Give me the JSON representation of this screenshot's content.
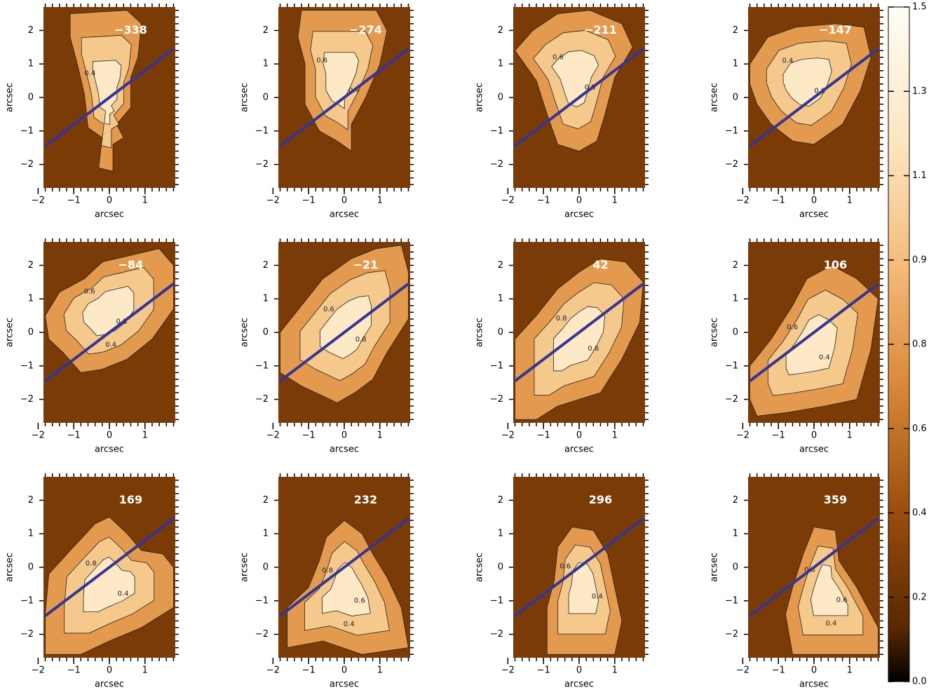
{
  "chart_data": [
    {
      "type": "image",
      "label": "-338",
      "xlabel": "arcsec",
      "ylabel": "arcsec",
      "xlim": [
        -1.85,
        1.85
      ],
      "ylim": [
        -2.7,
        2.7
      ],
      "xticks": [
        -2,
        -1,
        0,
        1
      ],
      "yticks": [
        -2,
        -1,
        0,
        1,
        2
      ],
      "contour_labels": [
        0.4
      ],
      "line": {
        "x": [
          -1.8,
          1.8
        ],
        "y": [
          -1.45,
          1.45
        ],
        "color": "#353594"
      }
    },
    {
      "type": "image",
      "label": "-274",
      "xlabel": "arcsec",
      "ylabel": "arcsec",
      "xlim": [
        -1.85,
        1.85
      ],
      "ylim": [
        -2.7,
        2.7
      ],
      "xticks": [
        -2,
        -1,
        0,
        1
      ],
      "yticks": [
        -2,
        -1,
        0,
        1,
        2
      ],
      "contour_labels": [
        0.6,
        0.4
      ],
      "line": {
        "x": [
          -1.8,
          1.8
        ],
        "y": [
          -1.45,
          1.45
        ],
        "color": "#353594"
      }
    },
    {
      "type": "image",
      "label": "-211",
      "xlabel": "arcsec",
      "ylabel": "arcsec",
      "xlim": [
        -1.85,
        1.85
      ],
      "ylim": [
        -2.7,
        2.7
      ],
      "xticks": [
        -2,
        -1,
        0,
        1
      ],
      "yticks": [
        -2,
        -1,
        0,
        1,
        2
      ],
      "contour_labels": [
        0.6,
        0.8
      ],
      "line": {
        "x": [
          -1.8,
          1.8
        ],
        "y": [
          -1.45,
          1.45
        ],
        "color": "#353594"
      }
    },
    {
      "type": "image",
      "label": "-147",
      "xlabel": "arcsec",
      "ylabel": "arcsec",
      "xlim": [
        -1.85,
        1.85
      ],
      "ylim": [
        -2.7,
        2.7
      ],
      "xticks": [
        -2,
        -1,
        0,
        1
      ],
      "yticks": [
        -2,
        -1,
        0,
        1,
        2
      ],
      "contour_labels": [
        0.4,
        0.6
      ],
      "line": {
        "x": [
          -1.8,
          1.8
        ],
        "y": [
          -1.45,
          1.45
        ],
        "color": "#353594"
      }
    },
    {
      "type": "image",
      "label": "-84",
      "xlabel": "arcsec",
      "ylabel": "arcsec",
      "xlim": [
        -1.85,
        1.85
      ],
      "ylim": [
        -2.7,
        2.7
      ],
      "xticks": [
        -2,
        -1,
        0,
        1
      ],
      "yticks": [
        -2,
        -1,
        0,
        1,
        2
      ],
      "contour_labels": [
        0.6,
        0.8,
        0.4
      ],
      "line": {
        "x": [
          -1.8,
          1.8
        ],
        "y": [
          -1.45,
          1.45
        ],
        "color": "#353594"
      }
    },
    {
      "type": "image",
      "label": "-21",
      "xlabel": "arcsec",
      "ylabel": "arcsec",
      "xlim": [
        -1.85,
        1.85
      ],
      "ylim": [
        -2.7,
        2.7
      ],
      "xticks": [
        -2,
        -1,
        0,
        1
      ],
      "yticks": [
        -2,
        -1,
        0,
        1,
        2
      ],
      "contour_labels": [
        0.6,
        0.8
      ],
      "line": {
        "x": [
          -1.8,
          1.8
        ],
        "y": [
          -1.45,
          1.45
        ],
        "color": "#353594"
      }
    },
    {
      "type": "image",
      "label": "42",
      "xlabel": "arcsec",
      "ylabel": "arcsec",
      "xlim": [
        -1.85,
        1.85
      ],
      "ylim": [
        -2.7,
        2.7
      ],
      "xticks": [
        -2,
        -1,
        0,
        1
      ],
      "yticks": [
        -2,
        -1,
        0,
        1,
        2
      ],
      "contour_labels": [
        0.8,
        0.6
      ],
      "line": {
        "x": [
          -1.8,
          1.8
        ],
        "y": [
          -1.45,
          1.45
        ],
        "color": "#353594"
      }
    },
    {
      "type": "image",
      "label": "106",
      "xlabel": "arcsec",
      "ylabel": "arcsec",
      "xlim": [
        -1.85,
        1.85
      ],
      "ylim": [
        -2.7,
        2.7
      ],
      "xticks": [
        -2,
        -1,
        0,
        1
      ],
      "yticks": [
        -2,
        -1,
        0,
        1,
        2
      ],
      "contour_labels": [
        0.6,
        0.4
      ],
      "line": {
        "x": [
          -1.8,
          1.8
        ],
        "y": [
          -1.45,
          1.45
        ],
        "color": "#353594"
      }
    },
    {
      "type": "image",
      "label": "169",
      "xlabel": "arcsec",
      "ylabel": "arcsec",
      "xlim": [
        -1.85,
        1.85
      ],
      "ylim": [
        -2.7,
        2.7
      ],
      "xticks": [
        -2,
        -1,
        0,
        1
      ],
      "yticks": [
        -2,
        -1,
        0,
        1,
        2
      ],
      "contour_labels": [
        0.8,
        0.4
      ],
      "line": {
        "x": [
          -1.8,
          1.8
        ],
        "y": [
          -1.45,
          1.45
        ],
        "color": "#353594"
      }
    },
    {
      "type": "image",
      "label": "232",
      "xlabel": "arcsec",
      "ylabel": "arcsec",
      "xlim": [
        -1.85,
        1.85
      ],
      "ylim": [
        -2.7,
        2.7
      ],
      "xticks": [
        -2,
        -1,
        0,
        1
      ],
      "yticks": [
        -2,
        -1,
        0,
        1,
        2
      ],
      "contour_labels": [
        0.8,
        0.6,
        0.4
      ],
      "line": {
        "x": [
          -1.8,
          1.8
        ],
        "y": [
          -1.45,
          1.45
        ],
        "color": "#353594"
      }
    },
    {
      "type": "image",
      "label": "296",
      "xlabel": "arcsec",
      "ylabel": "arcsec",
      "xlim": [
        -1.85,
        1.85
      ],
      "ylim": [
        -2.7,
        2.7
      ],
      "xticks": [
        -2,
        -1,
        0,
        1
      ],
      "yticks": [
        -2,
        -1,
        0,
        1,
        2
      ],
      "contour_labels": [
        0.6,
        0.4
      ],
      "line": {
        "x": [
          -1.8,
          1.8
        ],
        "y": [
          -1.45,
          1.45
        ],
        "color": "#353594"
      }
    },
    {
      "type": "image",
      "label": "359",
      "xlabel": "arcsec",
      "ylabel": "arcsec",
      "xlim": [
        -1.85,
        1.85
      ],
      "ylim": [
        -2.7,
        2.7
      ],
      "xticks": [
        -2,
        -1,
        0,
        1
      ],
      "yticks": [
        -2,
        -1,
        0,
        1,
        2
      ],
      "contour_labels": [
        0.8,
        0.6,
        0.4
      ],
      "line": {
        "x": [
          -1.8,
          1.8
        ],
        "y": [
          -1.45,
          1.45
        ],
        "color": "#353594"
      }
    },
    {
      "type": "colorbar",
      "ylim": [
        0,
        1.5
      ],
      "yticks": [
        {
          "value": 0,
          "label": "0.0"
        },
        {
          "value": 0.1875,
          "label": "0.2"
        },
        {
          "value": 0.375,
          "label": "0.4"
        },
        {
          "value": 0.5625,
          "label": "0.6"
        },
        {
          "value": 0.75,
          "label": "0.8"
        },
        {
          "value": 0.9375,
          "label": "0.9"
        },
        {
          "value": 1.125,
          "label": "1.1"
        },
        {
          "value": 1.3125,
          "label": "1.3"
        },
        1.5
      ]
    }
  ]
}
